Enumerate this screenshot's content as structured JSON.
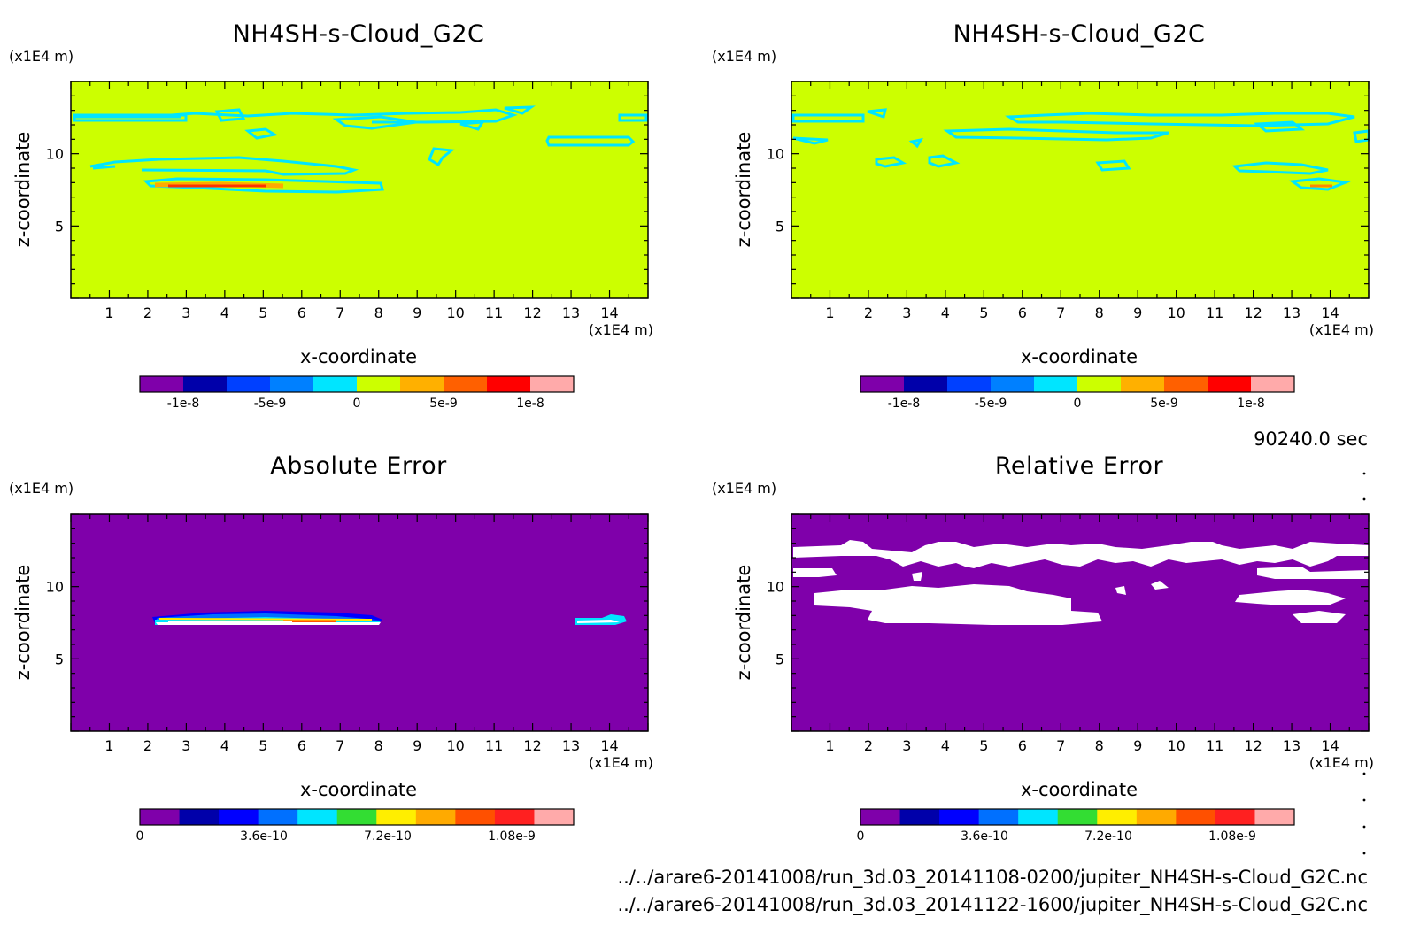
{
  "x_ticks": [
    "1",
    "2",
    "3",
    "4",
    "5",
    "6",
    "7",
    "8",
    "9",
    "10",
    "11",
    "12",
    "13",
    "14"
  ],
  "z_ticks": [
    "5",
    "10"
  ],
  "time_label": "90240.0 sec",
  "files": [
    "../../arare6-20141008/run_3d.03_20141108-0200/jupiter_NH4SH-s-Cloud_G2C.nc",
    "../../arare6-20141008/run_3d.03_20141122-1600/jupiter_NH4SH-s-Cloud_G2C.nc"
  ],
  "colors": {
    "bg_field_top": "#ccff00",
    "bg_field_bottom": "#7f00aa",
    "contour_cyan": "#00e5ff",
    "contour_red": "#ff3300",
    "white_region": "#ffffff"
  },
  "chart_data": [
    {
      "type": "heatmap",
      "title": "NH4SH-s-Cloud_G2C",
      "xlabel": "x-coordinate",
      "ylabel": "z-coordinate",
      "x_unit": "(x1E4 m)",
      "y_unit": "(x1E4 m)",
      "xlim": [
        0,
        15
      ],
      "ylim": [
        0,
        15
      ],
      "colorbar": {
        "tick_labels": [
          "-1e-8",
          "-5e-9",
          "0",
          "5e-9",
          "1e-8"
        ],
        "tick_values": [
          -1e-08,
          -5e-09,
          0,
          5e-09,
          1e-08
        ],
        "range": [
          -1.25e-08,
          1.25e-08
        ],
        "colors": [
          "#7f00aa",
          "#0000aa",
          "#0040ff",
          "#0080ff",
          "#00e5ff",
          "#ccff00",
          "#ffb000",
          "#ff6000",
          "#ff0000",
          "#ffaaaa"
        ]
      }
    },
    {
      "type": "heatmap",
      "title": "NH4SH-s-Cloud_G2C",
      "xlabel": "x-coordinate",
      "ylabel": "z-coordinate",
      "x_unit": "(x1E4 m)",
      "y_unit": "(x1E4 m)",
      "xlim": [
        0,
        15
      ],
      "ylim": [
        0,
        15
      ],
      "colorbar": {
        "tick_labels": [
          "-1e-8",
          "-5e-9",
          "0",
          "5e-9",
          "1e-8"
        ],
        "tick_values": [
          -1e-08,
          -5e-09,
          0,
          5e-09,
          1e-08
        ],
        "range": [
          -1.25e-08,
          1.25e-08
        ],
        "colors": [
          "#7f00aa",
          "#0000aa",
          "#0040ff",
          "#0080ff",
          "#00e5ff",
          "#ccff00",
          "#ffb000",
          "#ff6000",
          "#ff0000",
          "#ffaaaa"
        ]
      }
    },
    {
      "type": "heatmap",
      "title": "Absolute Error",
      "xlabel": "x-coordinate",
      "ylabel": "z-coordinate",
      "x_unit": "(x1E4 m)",
      "y_unit": "(x1E4 m)",
      "xlim": [
        0,
        15
      ],
      "ylim": [
        0,
        15
      ],
      "colorbar": {
        "tick_labels": [
          "0",
          "3.6e-10",
          "7.2e-10",
          "1.08e-9"
        ],
        "tick_values": [
          0,
          3.6e-10,
          7.2e-10,
          1.08e-09
        ],
        "range": [
          0,
          1.26e-09
        ],
        "colors": [
          "#7f00aa",
          "#0000aa",
          "#0000ff",
          "#0070ff",
          "#00e5ff",
          "#33dd33",
          "#ffee00",
          "#ffaa00",
          "#ff5000",
          "#ff2020",
          "#ffaaaa"
        ]
      }
    },
    {
      "type": "heatmap",
      "title": "Relative Error",
      "xlabel": "x-coordinate",
      "ylabel": "z-coordinate",
      "x_unit": "(x1E4 m)",
      "y_unit": "(x1E4 m)",
      "xlim": [
        0,
        15
      ],
      "ylim": [
        0,
        15
      ],
      "colorbar": {
        "tick_labels": [
          "0",
          "3.6e-10",
          "7.2e-10",
          "1.08e-9"
        ],
        "tick_values": [
          0,
          3.6e-10,
          7.2e-10,
          1.08e-09
        ],
        "range": [
          0,
          1.26e-09
        ],
        "colors": [
          "#7f00aa",
          "#0000aa",
          "#0000ff",
          "#0070ff",
          "#00e5ff",
          "#33dd33",
          "#ffee00",
          "#ffaa00",
          "#ff5000",
          "#ff2020",
          "#ffaaaa"
        ]
      }
    }
  ]
}
